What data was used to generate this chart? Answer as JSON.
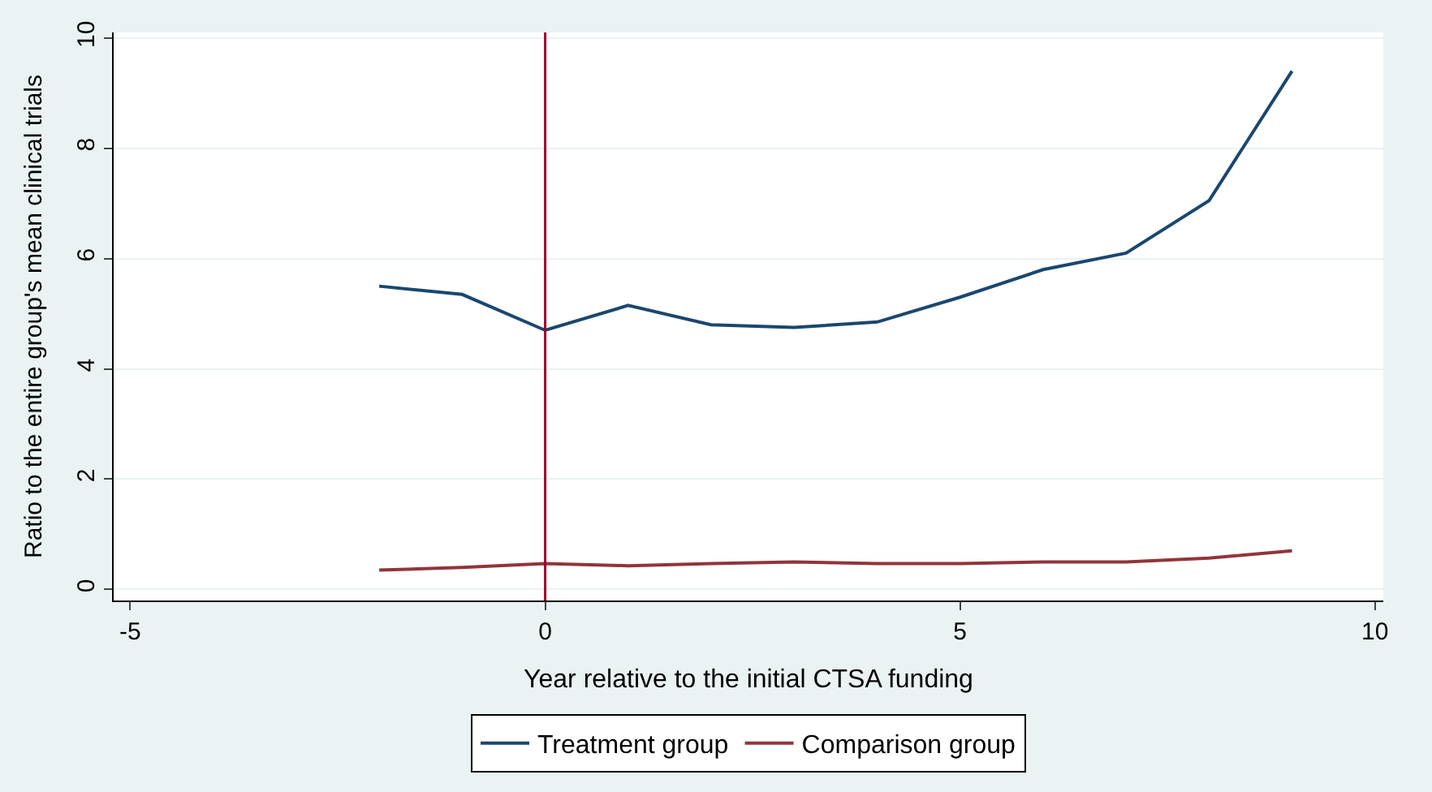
{
  "chart_data": {
    "type": "line",
    "xlabel": "Year relative to the initial CTSA funding",
    "ylabel": "Ratio to the entire group's mean clinical trials",
    "x": [
      -2,
      -1,
      0,
      1,
      2,
      3,
      4,
      5,
      6,
      7,
      8,
      9
    ],
    "series": [
      {
        "name": "Treatment group",
        "color": "#1a476f",
        "values": [
          5.5,
          5.35,
          4.7,
          5.15,
          4.8,
          4.75,
          4.85,
          5.3,
          5.8,
          6.1,
          7.05,
          9.4
        ]
      },
      {
        "name": "Comparison group",
        "color": "#90353b",
        "values": [
          0.35,
          0.4,
          0.47,
          0.43,
          0.47,
          0.5,
          0.47,
          0.47,
          0.5,
          0.5,
          0.57,
          0.7
        ]
      }
    ],
    "xlim": [
      -5.2,
      10.1
    ],
    "xticks": [
      -5,
      0,
      5,
      10
    ],
    "ylim": [
      -0.2,
      10.1
    ],
    "yticks": [
      0,
      2,
      4,
      6,
      8,
      10
    ],
    "ref_lines": [
      {
        "axis": "x",
        "value": 0,
        "color": "#a0002a"
      }
    ],
    "grid": "y",
    "legend": "bottom",
    "marker": "none",
    "line_style": "solid"
  }
}
